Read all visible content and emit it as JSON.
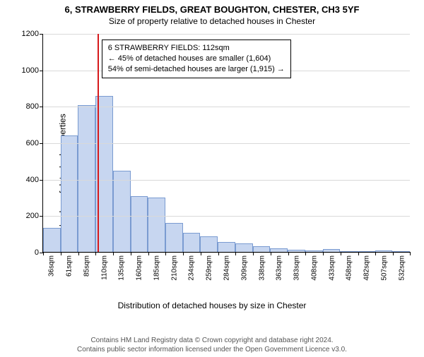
{
  "title_main": "6, STRAWBERRY FIELDS, GREAT BOUGHTON, CHESTER, CH3 5YF",
  "title_sub": "Size of property relative to detached houses in Chester",
  "ylabel": "Number of detached properties",
  "xlabel": "Distribution of detached houses by size in Chester",
  "chart": {
    "type": "histogram",
    "ylim": [
      0,
      1200
    ],
    "yticks": [
      0,
      200,
      400,
      600,
      800,
      1000,
      1200
    ],
    "grid_color": "#d9d9d9",
    "bar_fill": "#c7d6f0",
    "bar_stroke": "#7a9bd1",
    "marker_color": "#d7191c",
    "xticks": [
      "36sqm",
      "61sqm",
      "85sqm",
      "110sqm",
      "135sqm",
      "160sqm",
      "185sqm",
      "210sqm",
      "234sqm",
      "259sqm",
      "284sqm",
      "309sqm",
      "338sqm",
      "363sqm",
      "383sqm",
      "408sqm",
      "433sqm",
      "458sqm",
      "482sqm",
      "507sqm",
      "532sqm"
    ],
    "values": [
      130,
      640,
      805,
      855,
      445,
      305,
      300,
      160,
      105,
      85,
      55,
      45,
      30,
      20,
      12,
      8,
      15,
      5,
      5,
      8,
      5
    ],
    "marker_bin_index": 3
  },
  "callout": {
    "line1": "6 STRAWBERRY FIELDS: 112sqm",
    "line2": "← 45% of detached houses are smaller (1,604)",
    "line3": "54% of semi-detached houses are larger (1,915) →"
  },
  "footer": {
    "line1": "Contains HM Land Registry data © Crown copyright and database right 2024.",
    "line2": "Contains public sector information licensed under the Open Government Licence v3.0."
  }
}
